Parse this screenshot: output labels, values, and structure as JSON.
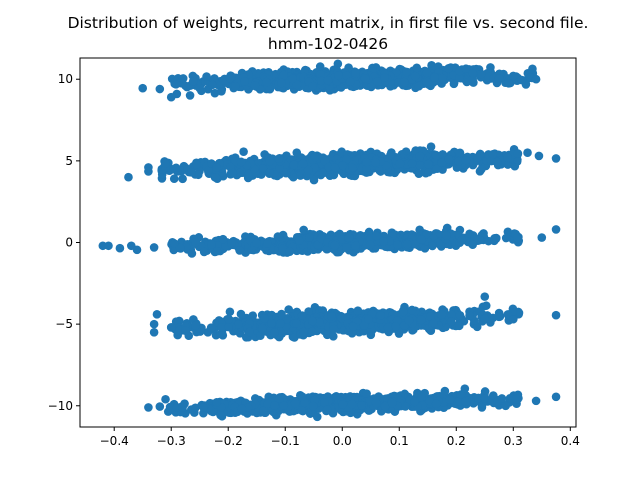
{
  "chart_data": {
    "type": "scatter",
    "title": "Distribution of weights, recurrent matrix, in first file vs. second file.",
    "subtitle": "hmm-102-0426",
    "xlabel": "",
    "ylabel": "",
    "xlim": [
      -0.46,
      0.41
    ],
    "ylim": [
      -11.3,
      11.3
    ],
    "x_ticks": [
      -0.4,
      -0.3,
      -0.2,
      -0.1,
      0.0,
      0.1,
      0.2,
      0.3,
      0.4
    ],
    "y_ticks": [
      -10,
      -5,
      0,
      5,
      10
    ],
    "grid": false,
    "marker_color": "#1f77b4",
    "clusters": [
      {
        "y_center": 10,
        "x_range": [
          -0.3,
          0.34
        ],
        "y_slope": 1.0,
        "y_spread": 0.25,
        "count": 900
      },
      {
        "y_center": 4.8,
        "x_range": [
          -0.32,
          0.31
        ],
        "y_slope": 1.0,
        "y_spread": 0.28,
        "count": 900
      },
      {
        "y_center": 0,
        "x_range": [
          -0.3,
          0.31
        ],
        "y_slope": 0.9,
        "y_spread": 0.22,
        "count": 900
      },
      {
        "y_center": -4.9,
        "x_range": [
          -0.3,
          0.31
        ],
        "y_slope": 1.2,
        "y_spread": 0.3,
        "count": 900
      },
      {
        "y_center": -9.9,
        "x_range": [
          -0.31,
          0.31
        ],
        "y_slope": 1.0,
        "y_spread": 0.22,
        "count": 900
      }
    ],
    "points": [
      [
        -0.35,
        9.45
      ],
      [
        -0.32,
        9.4
      ],
      [
        -0.3,
        8.9
      ],
      [
        -0.275,
        9.6
      ],
      [
        -0.25,
        9.45
      ],
      [
        0.33,
        10.1
      ],
      [
        0.34,
        10.0
      ],
      [
        0.275,
        10.05
      ],
      [
        0.315,
        9.95
      ],
      [
        0.3,
        10.2
      ],
      [
        -0.375,
        4.0
      ],
      [
        -0.34,
        4.6
      ],
      [
        -0.34,
        4.35
      ],
      [
        -0.31,
        4.85
      ],
      [
        -0.28,
        3.9
      ],
      [
        -0.265,
        4.3
      ],
      [
        0.325,
        5.5
      ],
      [
        0.345,
        5.3
      ],
      [
        0.375,
        5.15
      ],
      [
        0.29,
        5.2
      ],
      [
        -0.42,
        -0.2
      ],
      [
        -0.41,
        -0.2
      ],
      [
        -0.39,
        -0.35
      ],
      [
        -0.37,
        -0.2
      ],
      [
        -0.36,
        -0.45
      ],
      [
        -0.33,
        -0.3
      ],
      [
        0.35,
        0.3
      ],
      [
        0.375,
        0.8
      ],
      [
        -0.33,
        -5.0
      ],
      [
        -0.33,
        -5.5
      ],
      [
        -0.325,
        -4.4
      ],
      [
        -0.3,
        -5.2
      ],
      [
        -0.275,
        -5.4
      ],
      [
        0.375,
        -4.45
      ],
      [
        0.3,
        -4.7
      ],
      [
        0.275,
        -4.55
      ],
      [
        -0.34,
        -10.1
      ],
      [
        -0.32,
        -10.05
      ],
      [
        -0.31,
        -9.6
      ],
      [
        -0.29,
        -10.1
      ],
      [
        -0.28,
        -10.1
      ],
      [
        0.375,
        -9.45
      ],
      [
        0.34,
        -9.7
      ],
      [
        0.305,
        -9.6
      ],
      [
        0.28,
        -9.55
      ],
      [
        0.25,
        -9.55
      ],
      [
        0.215,
        -8.95
      ],
      [
        0.18,
        -9.1
      ]
    ]
  }
}
